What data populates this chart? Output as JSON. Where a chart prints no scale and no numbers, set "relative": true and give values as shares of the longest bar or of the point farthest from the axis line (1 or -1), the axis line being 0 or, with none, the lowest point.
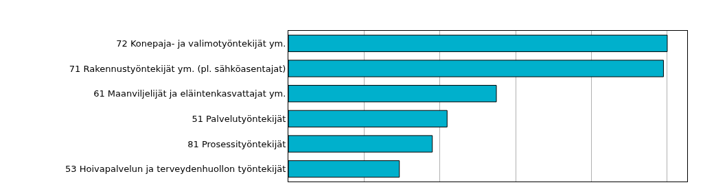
{
  "chart_data": {
    "type": "bar",
    "orientation": "horizontal",
    "relative": true,
    "grid": "x",
    "color": "#00b0cc",
    "categories": [
      "72 Konepaja- ja valimotyöntekijät ym.",
      "71 Rakennustyöntekijät ym. (pl. sähköasentajat)",
      "61 Maanviljelijät ja eläintenkasvattajat ym.",
      "51 Palvelutyöntekijät",
      "81 Prosessityöntekijät",
      "53 Hoivapalvelun ja terveydenhuollon työntekijät"
    ],
    "values": [
      1,
      0.99,
      0.549,
      0.419,
      0.38,
      0.293
    ]
  }
}
